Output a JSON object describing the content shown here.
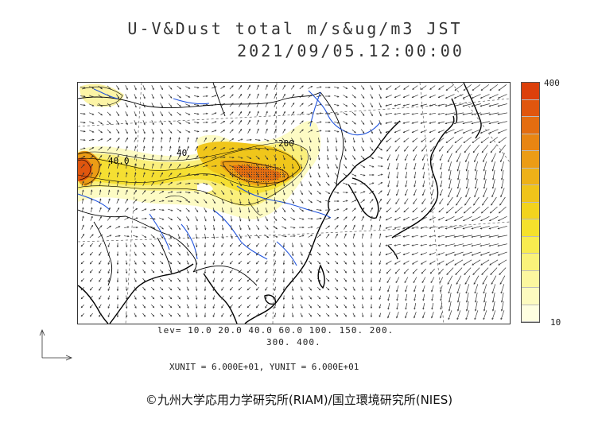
{
  "header": {
    "title_line1": "U-V&Dust total m/s&ug/m3 JST",
    "title_line2": "2021/09/05.12:00:00"
  },
  "colorbar": {
    "max_label": "400",
    "min_label": "10",
    "colors": [
      "#ffffe0",
      "#fdfbbf",
      "#fcf79f",
      "#faf27a",
      "#f8ec4f",
      "#f5e12c",
      "#f2d31e",
      "#f0c41a",
      "#eeb118",
      "#ec9c15",
      "#e88512",
      "#e46d10",
      "#e0560e",
      "#dc400b"
    ]
  },
  "contour_levels": {
    "line1": "lev= 10.0 20.0 40.0 60.0 100. 150. 200.",
    "line2": "300. 400."
  },
  "contour_labels": [
    "40.0",
    "40",
    "200"
  ],
  "units": {
    "text": "XUNIT = 6.000E+01, YUNIT = 6.000E+01"
  },
  "footer": {
    "copyright": "©九州大学応用力学研究所(RIAM)/国立環境研究所(NIES)"
  }
}
